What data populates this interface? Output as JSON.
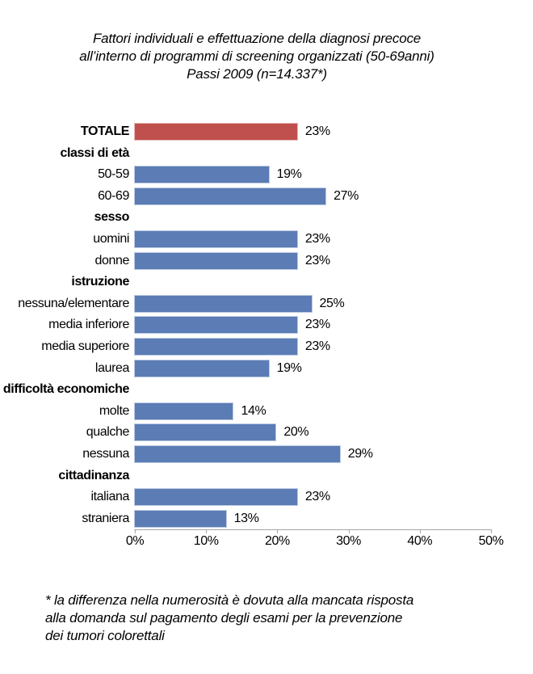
{
  "title": {
    "line1": "Fattori individuali e effettuazione della diagnosi precoce",
    "line2": "all’interno di programmi di screening organizzati (50-69anni)",
    "line3": "Passi 2009 (n=14.337*)"
  },
  "footnote": {
    "line1": "* la differenza nella numerosità è dovuta alla mancata risposta",
    "line2": "alla domanda sul pagamento degli esami per la prevenzione",
    "line3": "dei tumori colorettali"
  },
  "chart_data": {
    "type": "bar",
    "orientation": "horizontal",
    "title": "Fattori individuali e effettuazione della diagnosi precoce all’interno di programmi di screening organizzati (50-69anni) Passi 2009 (n=14.337*)",
    "xlabel": "",
    "ylabel": "",
    "xlim": [
      0,
      50
    ],
    "x_ticks": [
      "0%",
      "10%",
      "20%",
      "30%",
      "40%",
      "50%"
    ],
    "grid": false,
    "legend": "none",
    "colors": {
      "total_bar": "#C0504D",
      "bar": "#5B7CB5",
      "axis": "#A6A6A6"
    },
    "rows": [
      {
        "type": "bar",
        "label": "TOTALE",
        "bold": true,
        "value": 23,
        "value_label": "23%",
        "color_key": "total_bar"
      },
      {
        "type": "header",
        "label": "classi di età"
      },
      {
        "type": "bar",
        "label": "50-59",
        "value": 19,
        "value_label": "19%"
      },
      {
        "type": "bar",
        "label": "60-69",
        "value": 27,
        "value_label": "27%"
      },
      {
        "type": "header",
        "label": "sesso"
      },
      {
        "type": "bar",
        "label": "uomini",
        "value": 23,
        "value_label": "23%"
      },
      {
        "type": "bar",
        "label": "donne",
        "value": 23,
        "value_label": "23%"
      },
      {
        "type": "header",
        "label": "istruzione"
      },
      {
        "type": "bar",
        "label": "nessuna/elementare",
        "value": 25,
        "value_label": "25%"
      },
      {
        "type": "bar",
        "label": "media inferiore",
        "value": 23,
        "value_label": "23%"
      },
      {
        "type": "bar",
        "label": "media superiore",
        "value": 23,
        "value_label": "23%"
      },
      {
        "type": "bar",
        "label": "laurea",
        "value": 19,
        "value_label": "19%"
      },
      {
        "type": "header",
        "label": "difficoltà economiche"
      },
      {
        "type": "bar",
        "label": "molte",
        "value": 14,
        "value_label": "14%"
      },
      {
        "type": "bar",
        "label": "qualche",
        "value": 20,
        "value_label": "20%"
      },
      {
        "type": "bar",
        "label": "nessuna",
        "value": 29,
        "value_label": "29%"
      },
      {
        "type": "header",
        "label": "cittadinanza"
      },
      {
        "type": "bar",
        "label": "italiana",
        "value": 23,
        "value_label": "23%"
      },
      {
        "type": "bar",
        "label": "straniera",
        "value": 13,
        "value_label": "13%"
      }
    ]
  }
}
